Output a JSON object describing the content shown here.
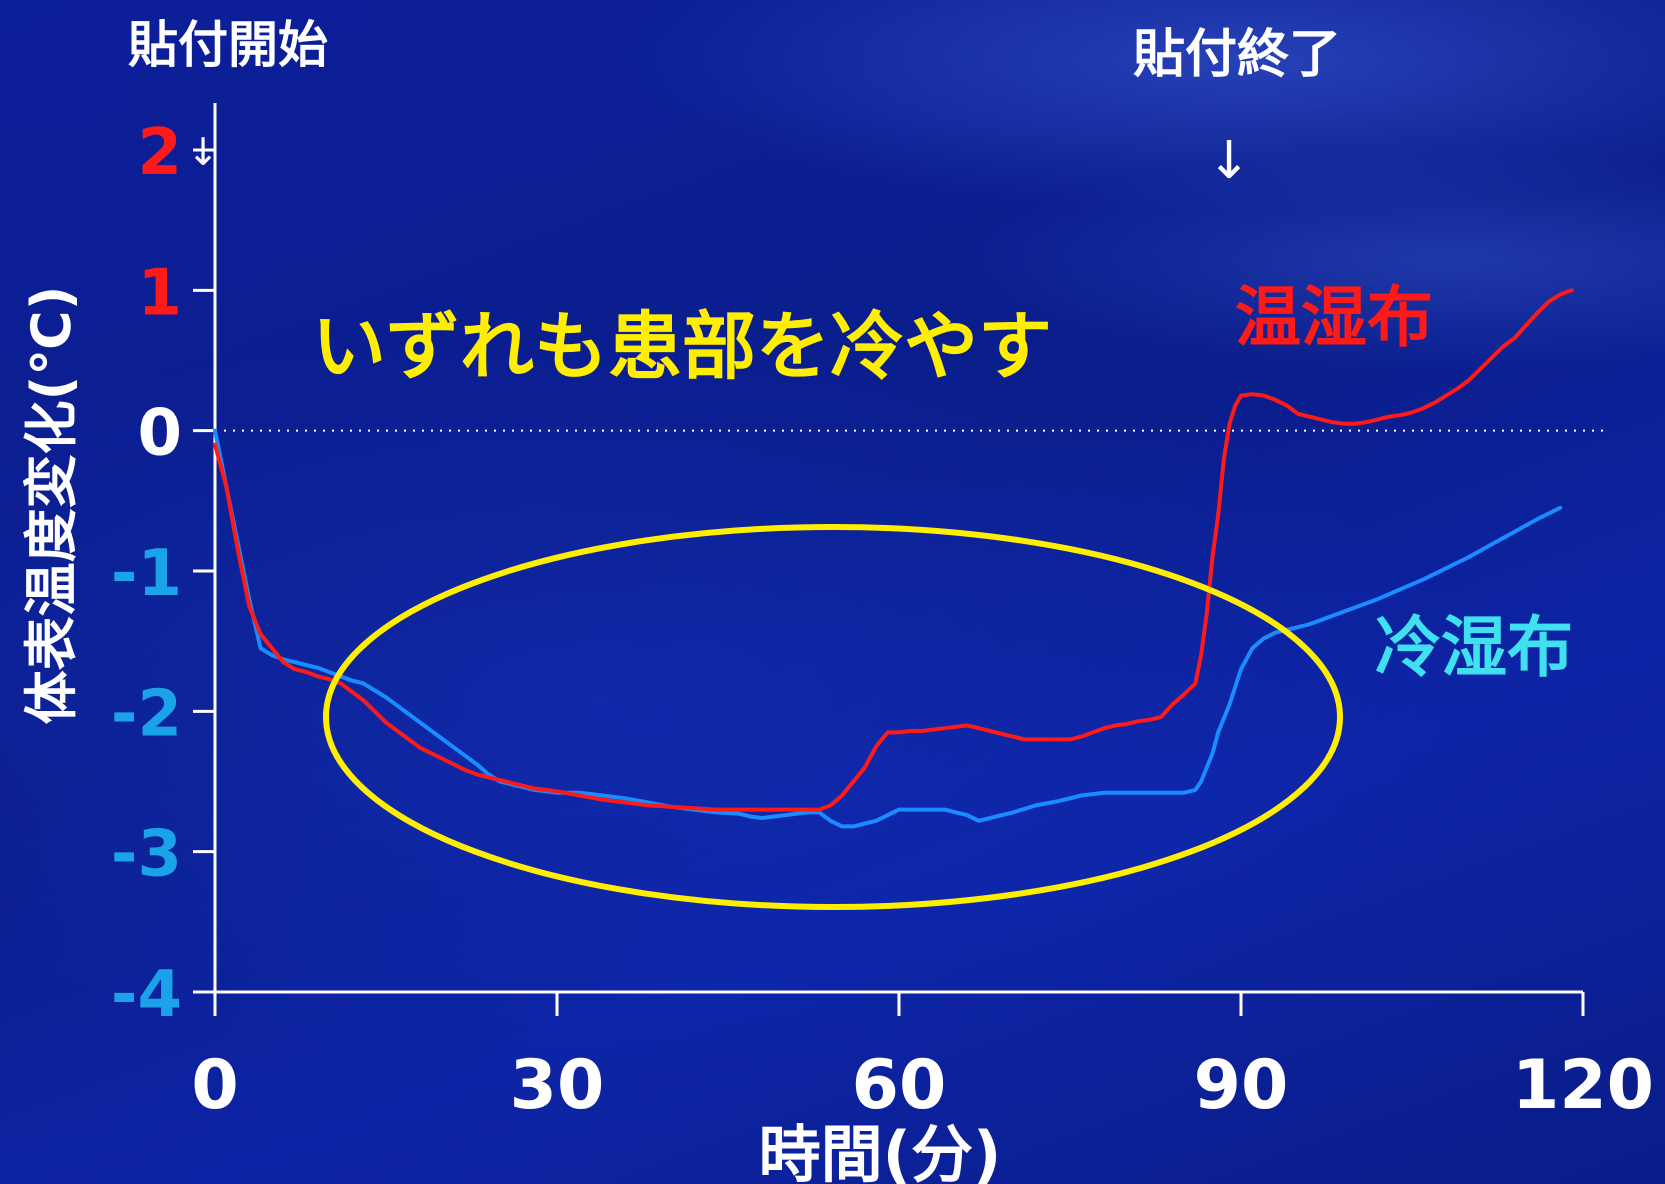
{
  "chart_data": {
    "type": "line",
    "title": "",
    "xlabel": "時間(分)",
    "ylabel": "体表温度変化(℃)",
    "xlim": [
      0,
      120
    ],
    "ylim": [
      -4,
      2
    ],
    "x_ticks": [
      "0",
      "30",
      "60",
      "90",
      "120"
    ],
    "y_ticks": [
      "2",
      "1",
      "0",
      "-1",
      "-2",
      "-3",
      "-4"
    ],
    "y_tick_colors": [
      "#ff1a1a",
      "#ff1a1a",
      "#ffffff",
      "#1aa3e8",
      "#1aa3e8",
      "#1aa3e8",
      "#1aa3e8"
    ],
    "zero_line": "dotted",
    "annotations": {
      "start": "貼付開始",
      "end": "貼付終了",
      "highlight": "いずれも患部を冷やす"
    },
    "series": [
      {
        "name": "温湿布",
        "color": "#ff1a1a",
        "x": [
          0,
          1,
          2,
          3,
          3.5,
          4,
          5,
          6,
          7,
          8,
          9,
          10,
          11,
          12,
          13,
          14,
          15,
          16,
          17,
          18,
          19,
          20,
          21,
          22,
          23,
          24,
          25,
          26,
          27,
          28,
          29,
          30,
          32,
          34,
          36,
          38,
          40,
          42,
          44,
          46,
          48,
          50,
          52,
          53,
          54,
          55,
          56,
          57,
          58,
          59,
          60,
          61,
          62,
          63,
          64,
          65,
          66,
          67,
          68,
          69,
          70,
          71,
          72,
          73,
          74,
          75,
          76,
          77,
          78,
          79,
          80,
          81,
          82,
          83,
          84,
          85,
          86,
          86.5,
          87,
          87.5,
          88,
          88.5,
          89,
          89.5,
          90,
          91,
          92,
          93,
          94,
          95,
          96,
          97,
          98,
          99,
          100,
          101,
          102,
          103,
          104,
          105,
          106,
          107,
          108,
          109,
          110,
          111,
          112,
          113,
          114,
          115,
          116,
          117,
          118,
          119
        ],
        "values": [
          -0.1,
          -0.4,
          -0.85,
          -1.25,
          -1.35,
          -1.45,
          -1.55,
          -1.65,
          -1.7,
          -1.72,
          -1.75,
          -1.77,
          -1.8,
          -1.86,
          -1.92,
          -2.0,
          -2.08,
          -2.14,
          -2.2,
          -2.26,
          -2.3,
          -2.34,
          -2.38,
          -2.42,
          -2.45,
          -2.47,
          -2.49,
          -2.51,
          -2.53,
          -2.55,
          -2.56,
          -2.57,
          -2.6,
          -2.63,
          -2.65,
          -2.67,
          -2.68,
          -2.69,
          -2.7,
          -2.7,
          -2.7,
          -2.7,
          -2.7,
          -2.7,
          -2.67,
          -2.6,
          -2.5,
          -2.4,
          -2.25,
          -2.15,
          -2.15,
          -2.14,
          -2.14,
          -2.13,
          -2.12,
          -2.11,
          -2.1,
          -2.12,
          -2.14,
          -2.16,
          -2.18,
          -2.2,
          -2.2,
          -2.2,
          -2.2,
          -2.2,
          -2.18,
          -2.15,
          -2.12,
          -2.1,
          -2.09,
          -2.07,
          -2.06,
          -2.04,
          -1.95,
          -1.88,
          -1.8,
          -1.6,
          -1.3,
          -0.9,
          -0.6,
          -0.2,
          0.05,
          0.18,
          0.25,
          0.26,
          0.25,
          0.22,
          0.18,
          0.12,
          0.1,
          0.08,
          0.06,
          0.05,
          0.05,
          0.06,
          0.08,
          0.1,
          0.11,
          0.13,
          0.16,
          0.2,
          0.25,
          0.3,
          0.36,
          0.44,
          0.52,
          0.6,
          0.66,
          0.75,
          0.84,
          0.92,
          0.97,
          1.0
        ]
      },
      {
        "name": "冷湿布",
        "color": "#1a8cff",
        "x": [
          0,
          1,
          2,
          3,
          4,
          5,
          6,
          7,
          8,
          9,
          10,
          11,
          12,
          13,
          14,
          15,
          16,
          17,
          18,
          19,
          20,
          21,
          22,
          23,
          24,
          25,
          26,
          27,
          28,
          29,
          30,
          32,
          34,
          36,
          38,
          40,
          42,
          44,
          46,
          47,
          48,
          50,
          52,
          53,
          54,
          55,
          56,
          57,
          58,
          59,
          60,
          62,
          64,
          66,
          67,
          68,
          70,
          72,
          74,
          76,
          78,
          80,
          82,
          84,
          85,
          86,
          86.5,
          87,
          87.5,
          88,
          89,
          90,
          91,
          92,
          93,
          94,
          96,
          98,
          100,
          102,
          104,
          106,
          108,
          110,
          112,
          114,
          116,
          118
        ],
        "values": [
          0.0,
          -0.4,
          -0.8,
          -1.2,
          -1.55,
          -1.6,
          -1.63,
          -1.65,
          -1.67,
          -1.69,
          -1.72,
          -1.75,
          -1.78,
          -1.8,
          -1.85,
          -1.9,
          -1.96,
          -2.02,
          -2.08,
          -2.14,
          -2.2,
          -2.26,
          -2.32,
          -2.38,
          -2.45,
          -2.5,
          -2.52,
          -2.54,
          -2.56,
          -2.57,
          -2.58,
          -2.58,
          -2.6,
          -2.62,
          -2.65,
          -2.68,
          -2.7,
          -2.72,
          -2.73,
          -2.75,
          -2.76,
          -2.74,
          -2.72,
          -2.72,
          -2.78,
          -2.82,
          -2.82,
          -2.8,
          -2.78,
          -2.74,
          -2.7,
          -2.7,
          -2.7,
          -2.74,
          -2.78,
          -2.76,
          -2.72,
          -2.67,
          -2.64,
          -2.6,
          -2.58,
          -2.58,
          -2.58,
          -2.58,
          -2.58,
          -2.56,
          -2.5,
          -2.4,
          -2.3,
          -2.15,
          -1.95,
          -1.7,
          -1.55,
          -1.48,
          -1.44,
          -1.42,
          -1.38,
          -1.32,
          -1.26,
          -1.2,
          -1.13,
          -1.06,
          -0.98,
          -0.9,
          -0.81,
          -0.72,
          -0.63,
          -0.55
        ]
      }
    ]
  }
}
